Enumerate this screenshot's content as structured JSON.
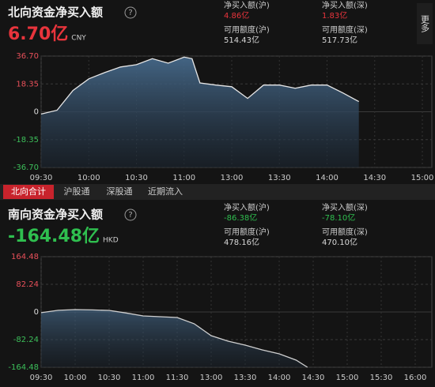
{
  "chart_data": [
    {
      "type": "area",
      "title": "北向资金净买入额",
      "help": "?",
      "total": "6.70亿",
      "total_color": "#e8343c",
      "currency": "CNY",
      "stats": [
        {
          "label": "净买入额(沪)",
          "value": "4.86亿",
          "color": "#e8343c"
        },
        {
          "label": "净买入额(深)",
          "value": "1.83亿",
          "color": "#e8343c"
        },
        {
          "label": "可用额度(沪)",
          "value": "514.43亿",
          "color": "#d8d8d8"
        },
        {
          "label": "可用额度(深)",
          "value": "517.73亿",
          "color": "#d8d8d8"
        }
      ],
      "x": [
        "09:30",
        "09:40",
        "09:50",
        "10:00",
        "10:10",
        "10:20",
        "10:30",
        "10:40",
        "10:50",
        "11:00",
        "11:05",
        "11:10",
        "11:20",
        "11:30",
        "13:10",
        "13:20",
        "13:30",
        "13:40",
        "13:50",
        "14:00",
        "14:10",
        "14:20"
      ],
      "series": [
        {
          "color": "#e6e6e6",
          "values": [
            -1.5,
            1,
            14,
            21.7,
            25.8,
            29.5,
            31,
            35,
            32,
            36,
            35,
            19,
            17.6,
            16.5,
            8.8,
            17.6,
            17.6,
            15.5,
            17.6,
            17.6,
            12.4,
            6.7
          ]
        }
      ],
      "xticks": [
        "09:30",
        "10:00",
        "10:30",
        "11:00",
        "13:00",
        "13:30",
        "14:00",
        "14:30",
        "15:00"
      ],
      "ylim": [
        -36.7,
        36.7
      ],
      "yticks": [
        {
          "value": -36.7,
          "label": "-36.70"
        },
        -18.35,
        0,
        18.35,
        {
          "value": 36.7,
          "label": "36.70"
        }
      ],
      "grid": true
    },
    {
      "type": "area",
      "title": "南向资金净买入额",
      "help": "?",
      "total": "-164.48亿",
      "total_color": "#2fbf4f",
      "currency": "HKD",
      "stats": [
        {
          "label": "净买入额(沪)",
          "value": "-86.38亿",
          "color": "#2fbf4f"
        },
        {
          "label": "净买入额(深)",
          "value": "-78.10亿",
          "color": "#2fbf4f"
        },
        {
          "label": "可用额度(沪)",
          "value": "478.16亿",
          "color": "#d8d8d8"
        },
        {
          "label": "可用额度(深)",
          "value": "470.10亿",
          "color": "#d8d8d8"
        }
      ],
      "x": [
        "09:30",
        "09:45",
        "10:00",
        "10:15",
        "10:30",
        "10:45",
        "11:00",
        "11:15",
        "11:30",
        "11:45",
        "12:00",
        "13:15",
        "13:30",
        "13:45",
        "14:00",
        "14:15",
        "14:25"
      ],
      "series": [
        {
          "color": "#d0d0d0",
          "values": [
            -2,
            5,
            7,
            6,
            4.7,
            -3,
            -11.8,
            -14,
            -16.5,
            -35,
            -70.5,
            -87,
            -98.7,
            -112.8,
            -124.6,
            -143.4,
            -164.48
          ]
        }
      ],
      "xticks": [
        "09:30",
        "10:00",
        "10:30",
        "11:00",
        "11:30",
        "13:00",
        "13:30",
        "14:00",
        "14:30",
        "15:00",
        "15:30",
        "16:00"
      ],
      "ylim": [
        -164.48,
        164.48
      ],
      "yticks": [
        {
          "value": -164.48,
          "label": "-164.48"
        },
        -82.24,
        0,
        82.24,
        164.48
      ],
      "grid": true
    }
  ],
  "tabs": [
    "北向合计",
    "沪股通",
    "深股通",
    "近期流入"
  ],
  "more": "更多"
}
